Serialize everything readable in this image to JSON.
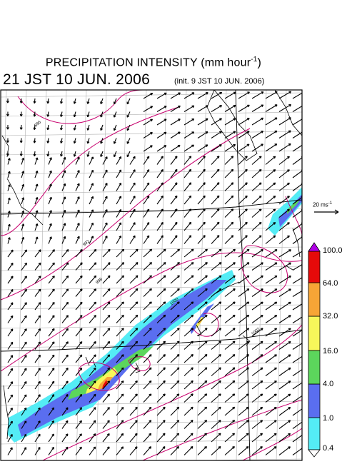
{
  "title": {
    "main": "PRECIPITATION INTENSITY (mm hour",
    "exp": "-1",
    "close": ")"
  },
  "valid_time": "21 JST 10 JUN. 2006",
  "init_time": "(init. 9 JST 10 JUN. 2006)",
  "reference_vector": {
    "label": "20 ms",
    "exp": "-1"
  },
  "colorbar": {
    "levels": [
      "0.4",
      "1.0",
      "4.0",
      "16.0",
      "32.0",
      "64.0",
      "100.0"
    ],
    "colors": [
      "#54ecf5",
      "#5a6ef0",
      "#5cd65c",
      "#f7f75a",
      "#f7a536",
      "#e60a0a",
      "#b000e6"
    ]
  },
  "contour_labels": [
    "996",
    "992",
    "998",
    "1000",
    "1002"
  ],
  "colors": {
    "contour": "#c8006e",
    "coast": "#000000",
    "grid": "#b0b0b0",
    "border": "#000000"
  }
}
